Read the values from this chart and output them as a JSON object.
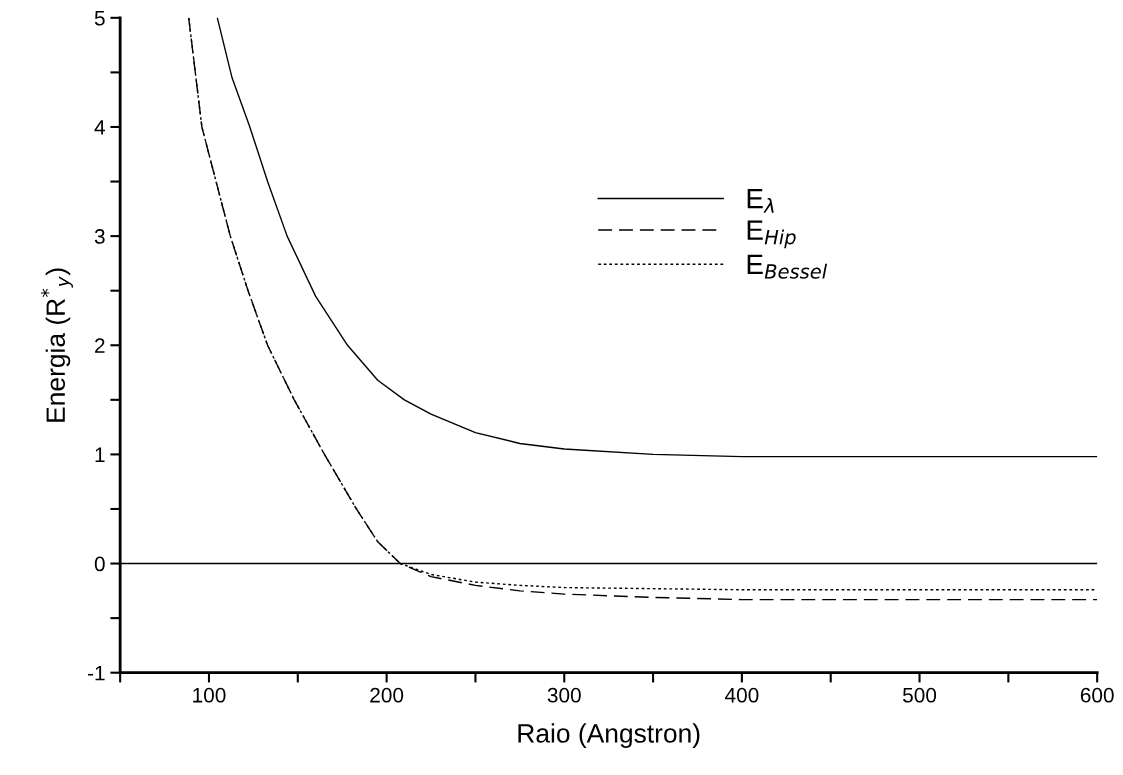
{
  "chart_data": {
    "type": "line",
    "xlabel": "Raio (Angstron)",
    "ylabel": "Energia (R$^{*}$$_{y}$)",
    "xlim": [
      50,
      600
    ],
    "ylim": [
      -1,
      5
    ],
    "xticks": [
      {
        "value": 50,
        "label": null
      },
      100,
      {
        "value": 150,
        "label": null
      },
      200,
      {
        "value": 250,
        "label": null
      },
      300,
      {
        "value": 350,
        "label": null
      },
      400,
      {
        "value": 450,
        "label": null
      },
      500,
      {
        "value": 550,
        "label": null
      },
      600
    ],
    "yticks": [
      -1,
      {
        "value": -0.5,
        "label": null
      },
      0,
      {
        "value": 0.5,
        "label": null
      },
      1,
      {
        "value": 1.5,
        "label": null
      },
      2,
      {
        "value": 2.5,
        "label": null
      },
      3,
      {
        "value": 3.5,
        "label": null
      },
      4,
      {
        "value": 4.5,
        "label": null
      },
      5
    ],
    "legend": "right",
    "grid": false,
    "ref_lines": [
      {
        "axis": "y",
        "value": 0,
        "color": "#000000",
        "line_style": "solid"
      }
    ],
    "series": [
      {
        "name": "E$_{λ}$",
        "color": "#000000",
        "line_style": "solid",
        "x": [
          104.7,
          113,
          123,
          133,
          144,
          160,
          178,
          195,
          210,
          225,
          250,
          275,
          300,
          350,
          400,
          500,
          600
        ],
        "values": [
          5,
          4.45,
          4,
          3.5,
          3,
          2.45,
          2,
          1.68,
          1.5,
          1.37,
          1.2,
          1.1,
          1.05,
          1.0,
          0.98,
          0.98,
          0.98
        ]
      },
      {
        "name": "E$_{Hip}$",
        "color": "#000000",
        "line_style": "dashed",
        "x": [
          88.6,
          96,
          104,
          112,
          122,
          133,
          148,
          165,
          183,
          195,
          207.7,
          225,
          250,
          275,
          300,
          350,
          400,
          500,
          600
        ],
        "values": [
          5,
          4,
          3.5,
          3,
          2.5,
          2,
          1.5,
          1,
          0.5,
          0.2,
          0,
          -0.12,
          -0.2,
          -0.25,
          -0.28,
          -0.31,
          -0.33,
          -0.33,
          -0.33
        ]
      },
      {
        "name": "E$_{Bessel}$",
        "color": "#000000",
        "line_style": "dotted",
        "x": [
          88.6,
          96,
          104,
          112,
          122,
          133,
          148,
          165,
          183,
          195,
          207.7,
          225,
          250,
          275,
          300,
          350,
          400,
          500,
          600
        ],
        "values": [
          5,
          4,
          3.5,
          3,
          2.5,
          2,
          1.5,
          1,
          0.5,
          0.2,
          0,
          -0.1,
          -0.17,
          -0.2,
          -0.22,
          -0.23,
          -0.24,
          -0.24,
          -0.24
        ]
      }
    ]
  }
}
